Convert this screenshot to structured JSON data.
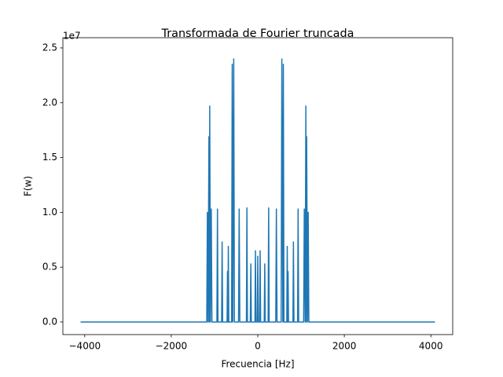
{
  "chart_data": {
    "type": "line",
    "title": "Transformada de Fourier truncada",
    "xlabel": "Frecuencia [Hz]",
    "ylabel": "F(w)",
    "y_offset_label": "1e7",
    "color": "#1f77b4",
    "x": [
      -4096,
      -1180,
      -1165,
      -1150,
      -1129,
      -1120,
      -1111,
      -1095,
      -1075,
      -1060,
      -945,
      -932,
      -920,
      -836,
      -824,
      -812,
      -710,
      -700,
      -690,
      -681,
      -670,
      -605,
      -591,
      -578,
      -556,
      -540,
      -445,
      -430,
      -415,
      -263,
      -251,
      -239,
      -173,
      -161,
      -149,
      -66,
      -54,
      -42,
      -12,
      0,
      12,
      42,
      54,
      66,
      149,
      161,
      173,
      239,
      251,
      263,
      415,
      430,
      445,
      540,
      556,
      578,
      591,
      605,
      670,
      681,
      690,
      700,
      710,
      812,
      824,
      836,
      920,
      932,
      945,
      1060,
      1075,
      1095,
      1111,
      1120,
      1129,
      1150,
      1165,
      1180,
      4096
    ],
    "values": [
      0,
      0,
      10000000,
      0,
      16900000,
      0,
      19700000,
      0,
      10300000,
      0,
      0,
      10300000,
      0,
      0,
      7300000,
      0,
      0,
      4600000,
      0,
      6900000,
      0,
      0,
      23500000,
      0,
      24000000,
      0,
      0,
      10300000,
      0,
      0,
      10400000,
      0,
      0,
      5300000,
      0,
      0,
      6500000,
      0,
      0,
      6000000,
      0,
      0,
      6500000,
      0,
      0,
      5300000,
      0,
      0,
      10400000,
      0,
      0,
      10300000,
      0,
      0,
      24000000,
      0,
      23500000,
      0,
      0,
      6900000,
      0,
      4600000,
      0,
      0,
      7300000,
      0,
      0,
      10300000,
      0,
      0,
      10300000,
      0,
      19700000,
      0,
      16900000,
      0,
      10000000,
      0,
      0
    ],
    "xlim": [
      -4505,
      4505
    ],
    "ylim": [
      -1150000,
      25930000
    ],
    "xticks": [
      {
        "value": -4000,
        "label": "−4000"
      },
      {
        "value": -2000,
        "label": "−2000"
      },
      0,
      2000,
      4000
    ],
    "yticks": [
      {
        "value": 0,
        "label": "0.0"
      },
      {
        "value": 5000000,
        "label": "0.5"
      },
      {
        "value": 10000000,
        "label": "1.0"
      },
      {
        "value": 15000000,
        "label": "1.5"
      },
      {
        "value": 20000000,
        "label": "2.0"
      },
      {
        "value": 25000000,
        "label": "2.5"
      }
    ],
    "grid": false
  }
}
